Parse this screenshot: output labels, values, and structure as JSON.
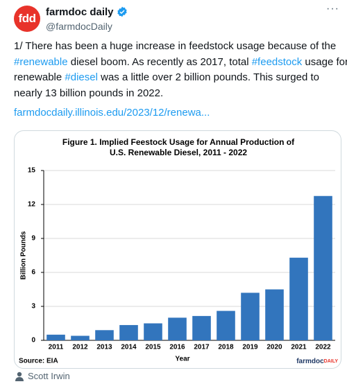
{
  "header": {
    "avatar_text": "fdd",
    "name": "farmdoc daily",
    "handle": "@farmdocDaily"
  },
  "tweet": {
    "lines": [
      [
        "1/ There has been a huge increase in feedstock usage because of the"
      ],
      [
        "#renewable",
        " diesel boom. As recently as 2017, total ",
        "#feedstock",
        " usage for"
      ],
      [
        "renewable ",
        "#diesel",
        " was a little over 2 billion pounds. This surged to"
      ],
      [
        "nearly 13 billion pounds in 2022."
      ]
    ],
    "link": "farmdocdaily.illinois.edu/2023/12/renewa..."
  },
  "chart_data": {
    "type": "bar",
    "title": [
      "Figure 1. Implied Feestock Usage for Annual Production of",
      "U.S. Renewable Diesel, 2011 - 2022"
    ],
    "x_label": "Year",
    "y_label": "Billion Pounds",
    "source": "Source: EIA",
    "logo": [
      "farmdoc",
      "DAILY"
    ],
    "categories": [
      "2011",
      "2012",
      "2013",
      "2014",
      "2015",
      "2016",
      "2017",
      "2018",
      "2019",
      "2020",
      "2021",
      "2022"
    ],
    "values": [
      0.5,
      0.4,
      0.9,
      1.35,
      1.5,
      2.0,
      2.15,
      2.6,
      4.2,
      4.5,
      7.3,
      12.75
    ],
    "color": "#3275bd",
    "ylim": [
      0,
      15
    ],
    "yticks": [
      0,
      3,
      6,
      9,
      12,
      15
    ],
    "grid": true
  },
  "credit": "Scott Irwin"
}
